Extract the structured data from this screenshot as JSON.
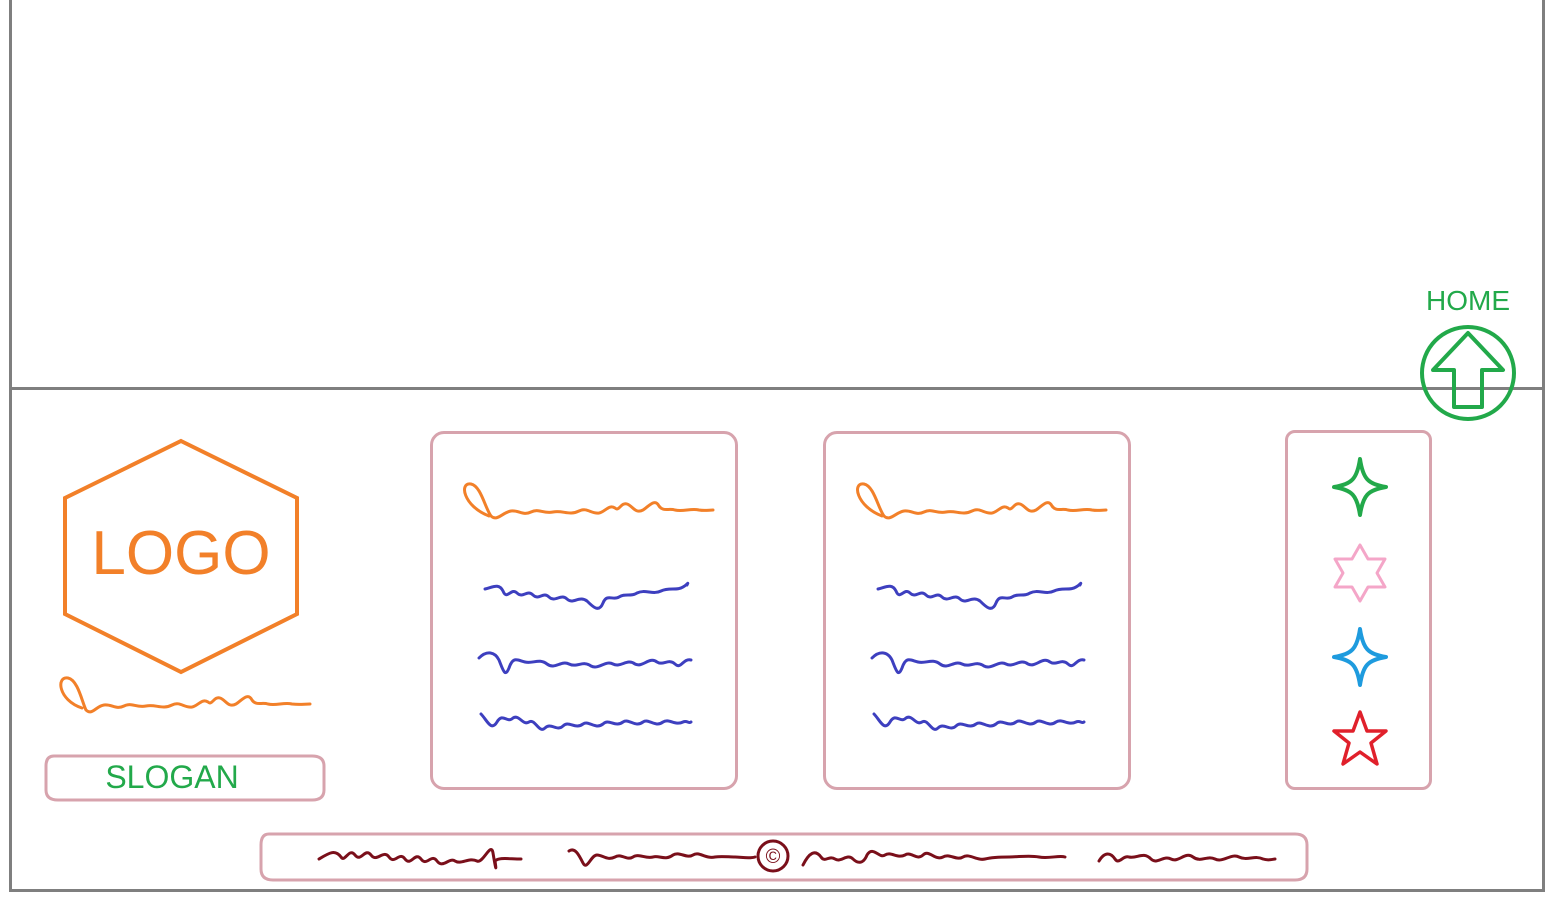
{
  "nav": {
    "home_label": "HOME"
  },
  "brand": {
    "logo_text": "LOGO",
    "slogan_text": "SLOGAN"
  },
  "colors": {
    "frame": "#7f7f7f",
    "accent_orange": "#f28029",
    "accent_green": "#22a94a",
    "scribble_blue": "#3d3fbf",
    "box_border": "#d7a3ad",
    "footer_ink": "#7a0f1a"
  },
  "columns": [
    {
      "heading": "placeholder-scribble",
      "links": [
        "placeholder-scribble",
        "placeholder-scribble",
        "placeholder-scribble"
      ]
    },
    {
      "heading": "placeholder-scribble",
      "links": [
        "placeholder-scribble",
        "placeholder-scribble",
        "placeholder-scribble"
      ]
    }
  ],
  "social_icons": [
    {
      "icon": "four-point-star-icon",
      "color": "#22a94a"
    },
    {
      "icon": "six-point-star-icon",
      "color": "#f4a6c8"
    },
    {
      "icon": "four-point-star-icon",
      "color": "#1e9bde"
    },
    {
      "icon": "five-point-star-icon",
      "color": "#e0202b"
    }
  ],
  "footer": {
    "copyright_symbol": "©"
  }
}
